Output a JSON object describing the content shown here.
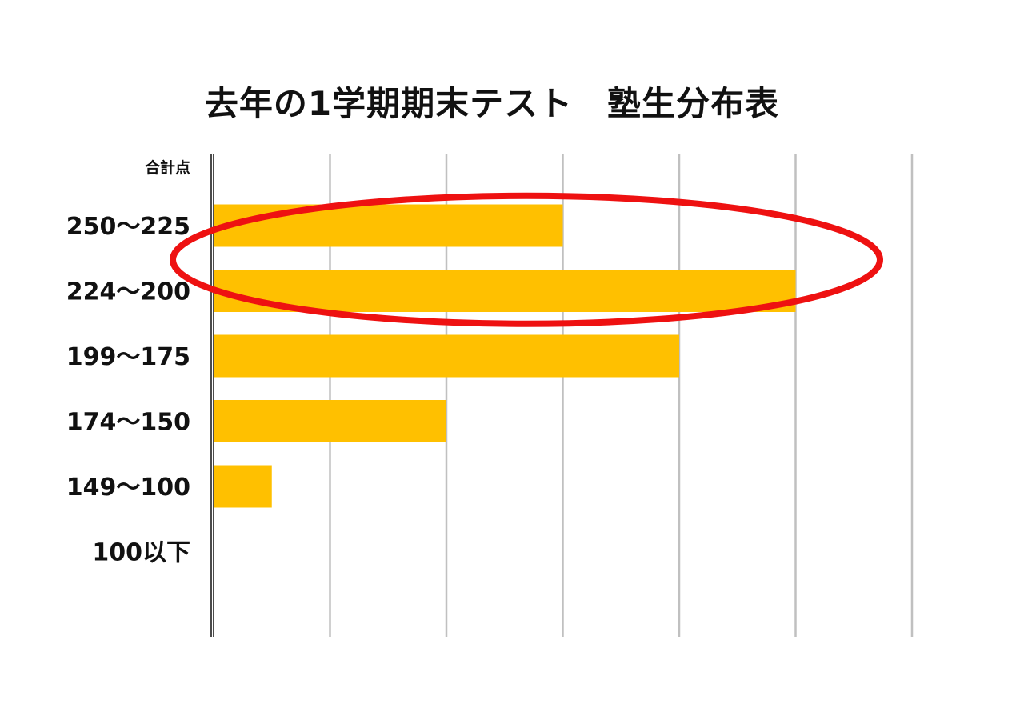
{
  "chart_data": {
    "type": "bar",
    "orientation": "horizontal",
    "title": "去年の1学期期末テスト　塾生分布表",
    "ylabel": "合計点",
    "xlabel": "",
    "categories": [
      "250～225",
      "224～200",
      "199～175",
      "174～150",
      "149～100",
      "100以下"
    ],
    "values": [
      3,
      5,
      4,
      2,
      0.5,
      0
    ],
    "xlim": [
      0,
      6
    ],
    "grid": true,
    "x_tick_labels_shown": false,
    "bar_color": "#FFC000",
    "annotation": {
      "shape": "ellipse",
      "color": "#EE1111",
      "highlights": [
        "250～225",
        "224～200"
      ]
    }
  }
}
